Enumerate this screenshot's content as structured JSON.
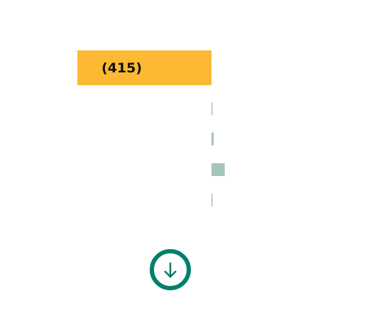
{
  "chart_data": {
    "type": "bar",
    "orientation": "horizontal",
    "categories": [
      null,
      null,
      null,
      null,
      null
    ],
    "values": [
      -415,
      1,
      7,
      41,
      2
    ],
    "value_labels": [
      "(415)",
      null,
      null,
      null,
      null
    ],
    "colors": [
      "#fdb933",
      "#a5c4ba",
      "#a5c4ba",
      "#a5c4ba",
      "#a5c4ba"
    ],
    "xlim": [
      -415,
      415
    ]
  }
}
